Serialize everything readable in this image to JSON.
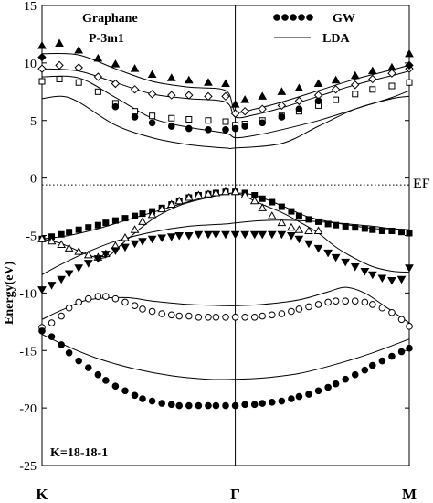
{
  "chart_data": {
    "type": "scatter",
    "ylabel": "Energy(eV)",
    "ylim": [
      -25,
      15
    ],
    "yticks": [
      15,
      10,
      5,
      0,
      -5,
      -10,
      -15,
      -20,
      -25
    ],
    "x_kpoints": [
      "K",
      "Γ",
      "M"
    ],
    "x_kpoint_positions": [
      0,
      1,
      1.9
    ],
    "xlim": [
      0,
      1.9
    ],
    "fermi_level": -0.6,
    "fermi_label": "EF",
    "annotations": [
      "Graphane",
      "P-3m1",
      "K=18-18-1"
    ],
    "legend": {
      "placement": "top-right",
      "entries": [
        {
          "label": "GW",
          "marker": "filled-circle"
        },
        {
          "label": "LDA",
          "marker": "line"
        }
      ]
    },
    "gw_series": [
      {
        "marker": "filled-triangle-up",
        "x": [
          0.0,
          0.09,
          0.19,
          0.29,
          0.38,
          0.48,
          0.57,
          0.67,
          0.76,
          0.86,
          0.95,
          1.0,
          1.05,
          1.14,
          1.24,
          1.33,
          1.43,
          1.52,
          1.62,
          1.71,
          1.81,
          1.9
        ],
        "y": [
          11.5,
          11.7,
          11.1,
          10.4,
          9.9,
          9.5,
          9.0,
          8.7,
          8.5,
          8.3,
          8.2,
          6.4,
          6.8,
          7.1,
          7.5,
          7.8,
          8.2,
          8.5,
          8.9,
          9.3,
          9.6,
          10.8
        ]
      },
      {
        "marker": "open-diamond",
        "x": [
          0.0,
          0.09,
          0.19,
          0.29,
          0.38,
          0.48,
          0.57,
          0.67,
          0.76,
          0.86,
          0.95,
          1.0,
          1.05,
          1.14,
          1.24,
          1.33,
          1.43,
          1.52,
          1.62,
          1.71,
          1.81,
          1.9
        ],
        "y": [
          9.5,
          9.8,
          9.6,
          8.8,
          8.2,
          7.7,
          7.3,
          7.2,
          7.2,
          7.1,
          7.1,
          5.6,
          5.8,
          6.0,
          6.3,
          6.7,
          7.2,
          7.7,
          8.1,
          8.6,
          9.1,
          9.5
        ]
      },
      {
        "marker": "filled-diamond",
        "x": [
          0.0,
          1.9
        ],
        "y": [
          10.5,
          9.8
        ]
      },
      {
        "marker": "open-square",
        "x": [
          0.0,
          0.09,
          0.19,
          0.29,
          0.38,
          0.48,
          0.57,
          0.67,
          0.76,
          0.86,
          0.95,
          1.0,
          1.05,
          1.14,
          1.24,
          1.33,
          1.43,
          1.52,
          1.62,
          1.71,
          1.81,
          1.9
        ],
        "y": [
          8.4,
          8.6,
          8.3,
          7.5,
          6.5,
          5.8,
          5.4,
          5.2,
          5.1,
          5.0,
          4.9,
          4.6,
          4.7,
          5.0,
          5.4,
          5.8,
          6.3,
          6.8,
          7.3,
          7.7,
          8.0,
          8.3
        ]
      },
      {
        "marker": "filled-circle",
        "x": [
          0.38,
          0.48,
          0.57,
          0.67,
          0.76,
          0.86,
          0.95,
          1.0,
          1.05,
          1.14,
          1.24,
          1.33,
          1.43
        ],
        "y": [
          6.2,
          5.3,
          4.8,
          4.5,
          4.3,
          4.2,
          4.2,
          4.3,
          4.5,
          4.8,
          5.3,
          6.0,
          6.7
        ]
      },
      {
        "marker": "filled-square",
        "x": [
          0.0,
          0.05,
          0.1,
          0.14,
          0.19,
          0.24,
          0.29,
          0.33,
          0.38,
          0.43,
          0.48,
          0.52,
          0.57,
          0.62,
          0.67,
          0.71,
          0.76,
          0.81,
          0.86,
          0.9,
          0.95,
          1.0,
          1.05,
          1.1,
          1.14,
          1.19,
          1.24,
          1.29,
          1.33,
          1.38,
          1.43,
          1.48,
          1.52,
          1.57,
          1.62,
          1.67,
          1.71,
          1.76,
          1.81,
          1.86,
          1.9
        ],
        "y": [
          -5.3,
          -5.1,
          -4.9,
          -4.7,
          -4.5,
          -4.3,
          -4.1,
          -3.9,
          -3.7,
          -3.5,
          -3.3,
          -3.1,
          -2.9,
          -2.6,
          -2.3,
          -2.0,
          -1.7,
          -1.5,
          -1.4,
          -1.3,
          -1.2,
          -1.2,
          -1.3,
          -1.5,
          -1.8,
          -2.1,
          -2.5,
          -2.9,
          -3.3,
          -3.6,
          -3.8,
          -4.0,
          -4.1,
          -4.2,
          -4.3,
          -4.4,
          -4.5,
          -4.6,
          -4.6,
          -4.7,
          -4.8
        ]
      },
      {
        "marker": "open-triangle-up",
        "x": [
          0.0,
          0.05,
          0.1,
          0.14,
          0.19,
          0.24,
          0.29,
          0.33,
          0.38,
          0.43,
          0.48,
          0.52,
          0.57,
          0.62,
          0.67,
          0.71,
          0.76,
          0.81,
          0.86,
          0.9,
          0.95,
          1.0,
          1.05,
          1.1,
          1.14,
          1.19,
          1.24,
          1.29,
          1.33,
          1.38,
          1.43
        ],
        "y": [
          -5.3,
          -5.5,
          -5.8,
          -6.1,
          -6.4,
          -6.7,
          -6.9,
          -6.6,
          -5.9,
          -5.2,
          -4.5,
          -3.8,
          -3.2,
          -2.7,
          -2.3,
          -2.0,
          -1.7,
          -1.5,
          -1.4,
          -1.3,
          -1.2,
          -1.2,
          -1.5,
          -2.0,
          -2.6,
          -3.3,
          -3.9,
          -4.3,
          -4.5,
          -4.6,
          -4.6
        ]
      },
      {
        "marker": "filled-triangle-down",
        "x": [
          0.0,
          0.05,
          0.1,
          0.14,
          0.19,
          0.24,
          0.29,
          0.33,
          0.38,
          0.43,
          0.48,
          0.52,
          0.57,
          0.62,
          0.67,
          0.71,
          0.76,
          0.81,
          0.86,
          0.9,
          0.95,
          1.0,
          1.05,
          1.1,
          1.14,
          1.19,
          1.24,
          1.29,
          1.33,
          1.38,
          1.43,
          1.48,
          1.52,
          1.57,
          1.62,
          1.67,
          1.71,
          1.76,
          1.81,
          1.86,
          1.9
        ],
        "y": [
          -9.7,
          -9.3,
          -8.8,
          -8.3,
          -7.8,
          -7.4,
          -7.0,
          -6.6,
          -6.3,
          -6.0,
          -5.7,
          -5.5,
          -5.3,
          -5.2,
          -5.1,
          -5.0,
          -5.0,
          -4.9,
          -4.9,
          -4.9,
          -4.9,
          -4.9,
          -4.9,
          -4.9,
          -4.9,
          -4.9,
          -4.9,
          -5.0,
          -5.3,
          -5.7,
          -6.1,
          -6.5,
          -6.9,
          -7.3,
          -7.7,
          -8.1,
          -8.4,
          -8.7,
          -8.9,
          -8.8,
          -7.8
        ]
      },
      {
        "marker": "open-circle",
        "x": [
          0.0,
          0.05,
          0.1,
          0.14,
          0.19,
          0.24,
          0.29,
          0.33,
          0.38,
          0.43,
          0.48,
          0.52,
          0.57,
          0.62,
          0.67,
          0.71,
          0.76,
          0.81,
          0.86,
          0.9,
          0.95,
          1.0,
          1.05,
          1.1,
          1.14,
          1.19,
          1.24,
          1.29,
          1.33,
          1.38,
          1.43,
          1.48,
          1.52,
          1.57,
          1.62,
          1.67,
          1.71,
          1.76,
          1.81,
          1.86,
          1.9
        ],
        "y": [
          -13.0,
          -12.6,
          -12.0,
          -11.3,
          -10.8,
          -10.5,
          -10.3,
          -10.3,
          -10.5,
          -10.8,
          -11.1,
          -11.4,
          -11.6,
          -11.8,
          -11.9,
          -12.0,
          -12.0,
          -12.1,
          -12.1,
          -12.1,
          -12.1,
          -12.1,
          -12.1,
          -12.1,
          -12.0,
          -11.9,
          -11.8,
          -11.6,
          -11.4,
          -11.2,
          -11.0,
          -10.8,
          -10.7,
          -10.7,
          -10.7,
          -10.8,
          -11.0,
          -11.3,
          -11.7,
          -12.3,
          -12.9
        ]
      },
      {
        "marker": "filled-circle",
        "x": [
          0.0,
          0.05,
          0.1,
          0.14,
          0.19,
          0.24,
          0.29,
          0.33,
          0.38,
          0.43,
          0.48,
          0.52,
          0.57,
          0.62,
          0.67,
          0.71,
          0.76,
          0.81,
          0.86,
          0.9,
          0.95,
          1.0,
          1.05,
          1.1,
          1.14,
          1.19,
          1.24,
          1.29,
          1.33,
          1.38,
          1.43,
          1.48,
          1.52,
          1.57,
          1.62,
          1.67,
          1.71,
          1.76,
          1.81,
          1.86,
          1.9
        ],
        "y": [
          -13.3,
          -13.8,
          -14.5,
          -15.2,
          -15.9,
          -16.5,
          -17.1,
          -17.6,
          -18.1,
          -18.5,
          -18.9,
          -19.2,
          -19.4,
          -19.6,
          -19.7,
          -19.8,
          -19.8,
          -19.8,
          -19.8,
          -19.8,
          -19.8,
          -19.8,
          -19.7,
          -19.7,
          -19.6,
          -19.5,
          -19.4,
          -19.2,
          -19.0,
          -18.8,
          -18.5,
          -18.2,
          -17.9,
          -17.5,
          -17.1,
          -16.7,
          -16.3,
          -15.9,
          -15.5,
          -15.1,
          -14.8
        ]
      }
    ],
    "lda_bands": [
      {
        "x": [
          0.0,
          0.19,
          0.38,
          0.57,
          0.76,
          0.95,
          1.0,
          1.1,
          1.24,
          1.43,
          1.62,
          1.81,
          1.9
        ],
        "y": [
          10.8,
          10.7,
          9.5,
          8.4,
          7.9,
          7.6,
          5.8,
          6.0,
          6.6,
          7.6,
          8.6,
          9.4,
          9.8
        ]
      },
      {
        "x": [
          0.0,
          0.19,
          0.38,
          0.57,
          0.76,
          0.95,
          1.0,
          1.1,
          1.24,
          1.43,
          1.62,
          1.81,
          1.9
        ],
        "y": [
          9.5,
          9.3,
          8.3,
          7.3,
          6.9,
          6.6,
          5.3,
          5.5,
          6.1,
          7.1,
          8.1,
          8.9,
          9.3
        ]
      },
      {
        "x": [
          0.0,
          0.19,
          0.38,
          0.57,
          0.76,
          0.95,
          1.0,
          1.1,
          1.24,
          1.43,
          1.62,
          1.81,
          1.9
        ],
        "y": [
          8.8,
          8.7,
          7.0,
          5.2,
          4.4,
          3.9,
          3.5,
          3.7,
          4.2,
          5.0,
          6.0,
          7.0,
          7.6
        ]
      },
      {
        "x": [
          0.0,
          0.1,
          0.19,
          0.38,
          0.57,
          0.76,
          0.95,
          1.0,
          1.24,
          1.43,
          1.62,
          1.81,
          1.9
        ],
        "y": [
          6.9,
          7.1,
          6.6,
          4.6,
          3.5,
          2.9,
          2.6,
          2.6,
          3.0,
          4.5,
          6.0,
          6.9,
          7.1
        ]
      },
      {
        "x": [
          0.0,
          0.14,
          0.29,
          0.43,
          0.57,
          0.71,
          0.86,
          0.95,
          1.0,
          1.1,
          1.24,
          1.38,
          1.52,
          1.67,
          1.81,
          1.9
        ],
        "y": [
          -5.3,
          -5.0,
          -4.4,
          -3.7,
          -3.0,
          -2.3,
          -1.6,
          -1.4,
          -1.3,
          -1.5,
          -2.4,
          -3.4,
          -3.9,
          -4.3,
          -4.5,
          -4.5
        ]
      },
      {
        "x": [
          0.0,
          0.1,
          0.24,
          0.33,
          0.43,
          0.57,
          0.71,
          0.86,
          0.95,
          1.0,
          1.05,
          1.14,
          1.24,
          1.33,
          1.43,
          1.52,
          1.62,
          1.71,
          1.81,
          1.9
        ],
        "y": [
          -5.3,
          -5.7,
          -6.7,
          -6.9,
          -5.5,
          -3.6,
          -2.4,
          -1.7,
          -1.4,
          -1.3,
          -1.6,
          -2.3,
          -3.0,
          -3.8,
          -4.8,
          -6.0,
          -7.0,
          -7.7,
          -8.1,
          -8.2
        ]
      },
      {
        "x": [
          0.0,
          0.1,
          0.24,
          0.38,
          0.57,
          0.76,
          0.95,
          1.0,
          1.14,
          1.33,
          1.52,
          1.71,
          1.81,
          1.9
        ],
        "y": [
          -8.4,
          -7.5,
          -6.4,
          -5.5,
          -4.7,
          -4.2,
          -4.0,
          -3.9,
          -3.7,
          -3.7,
          -3.9,
          -4.2,
          -4.4,
          -4.5
        ]
      },
      {
        "x": [
          0.0,
          0.1,
          0.24,
          0.43,
          0.57,
          0.76,
          0.95,
          1.0,
          1.14,
          1.33,
          1.48,
          1.57,
          1.67,
          1.76,
          1.9
        ],
        "y": [
          -12.3,
          -11.5,
          -10.6,
          -10.4,
          -10.7,
          -11.0,
          -11.1,
          -11.1,
          -11.0,
          -10.6,
          -9.9,
          -9.5,
          -10.0,
          -11.0,
          -12.6
        ]
      },
      {
        "x": [
          0.0,
          0.14,
          0.29,
          0.48,
          0.67,
          0.86,
          1.0,
          1.14,
          1.33,
          1.52,
          1.71,
          1.9
        ],
        "y": [
          -13.6,
          -14.7,
          -15.7,
          -16.6,
          -17.2,
          -17.5,
          -17.5,
          -17.4,
          -17.0,
          -16.2,
          -15.2,
          -14.0
        ]
      }
    ]
  }
}
